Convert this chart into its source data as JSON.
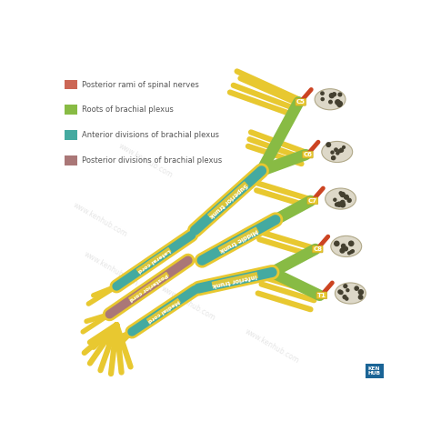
{
  "bg_color": "#ffffff",
  "legend_items": [
    {
      "color": "#cc6655",
      "label": "Posterior rami of spinal nerves"
    },
    {
      "color": "#88bb44",
      "label": "Roots of brachial plexus"
    },
    {
      "color": "#44aaa0",
      "label": "Anterior divisions of brachial plexus"
    },
    {
      "color": "#aa7777",
      "label": "Posterior divisions of brachial plexus"
    }
  ],
  "yellow": "#e8c830",
  "yellow_dark": "#c8a820",
  "green": "#88bb44",
  "teal": "#44aaa0",
  "mauve": "#aa7777",
  "red": "#cc4422",
  "vert_fill": "#ddd8c8",
  "vert_dot": "#444030",
  "label_color": "#ffffff",
  "cord_label_bg": "#e8c830",
  "trunk_label_bg": "#e8c830",
  "kenhub_blue": "#1a6496",
  "legend_text_color": "#555555",
  "watermark_color": "#cccccc"
}
